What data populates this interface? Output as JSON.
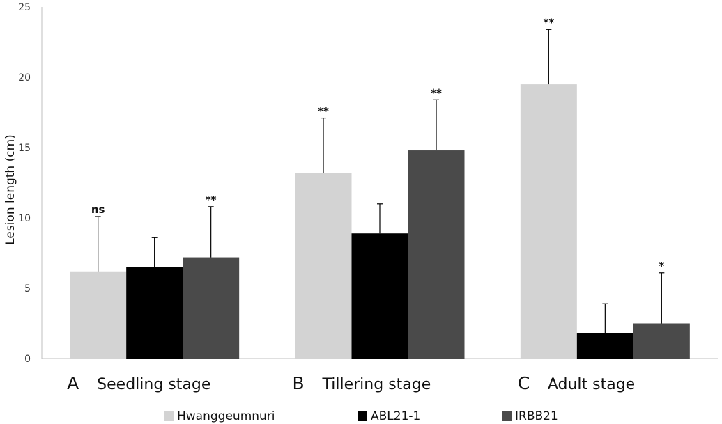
{
  "chart_data": {
    "type": "bar",
    "title": "",
    "xlabel": "",
    "ylabel": "Lesion length (cm)",
    "ylim": [
      0,
      25
    ],
    "yticks": [
      0,
      5,
      10,
      15,
      20,
      25
    ],
    "categories": [
      {
        "letter": "A",
        "name": "Seedling stage"
      },
      {
        "letter": "B",
        "name": "Tillering stage"
      },
      {
        "letter": "C",
        "name": "Adult stage"
      }
    ],
    "series": [
      {
        "name": "Hwanggeumnuri",
        "color": "#d3d3d3",
        "values": [
          6.2,
          13.2,
          19.5
        ],
        "errors": [
          3.9,
          3.9,
          3.9
        ]
      },
      {
        "name": "ABL21-1",
        "color": "#000000",
        "values": [
          6.5,
          8.9,
          1.8
        ],
        "errors": [
          2.1,
          2.1,
          2.1
        ]
      },
      {
        "name": "IRBB21",
        "color": "#4a4a4a",
        "values": [
          7.2,
          14.8,
          2.5
        ],
        "errors": [
          3.6,
          3.6,
          3.6
        ]
      }
    ],
    "annotations": [
      {
        "category": 0,
        "series": 0,
        "text": "ns"
      },
      {
        "category": 0,
        "series": 2,
        "text": "**"
      },
      {
        "category": 1,
        "series": 0,
        "text": "**"
      },
      {
        "category": 1,
        "series": 2,
        "text": "**"
      },
      {
        "category": 2,
        "series": 0,
        "text": "**"
      },
      {
        "category": 2,
        "series": 2,
        "text": "*"
      }
    ],
    "legend_position": "bottom"
  }
}
